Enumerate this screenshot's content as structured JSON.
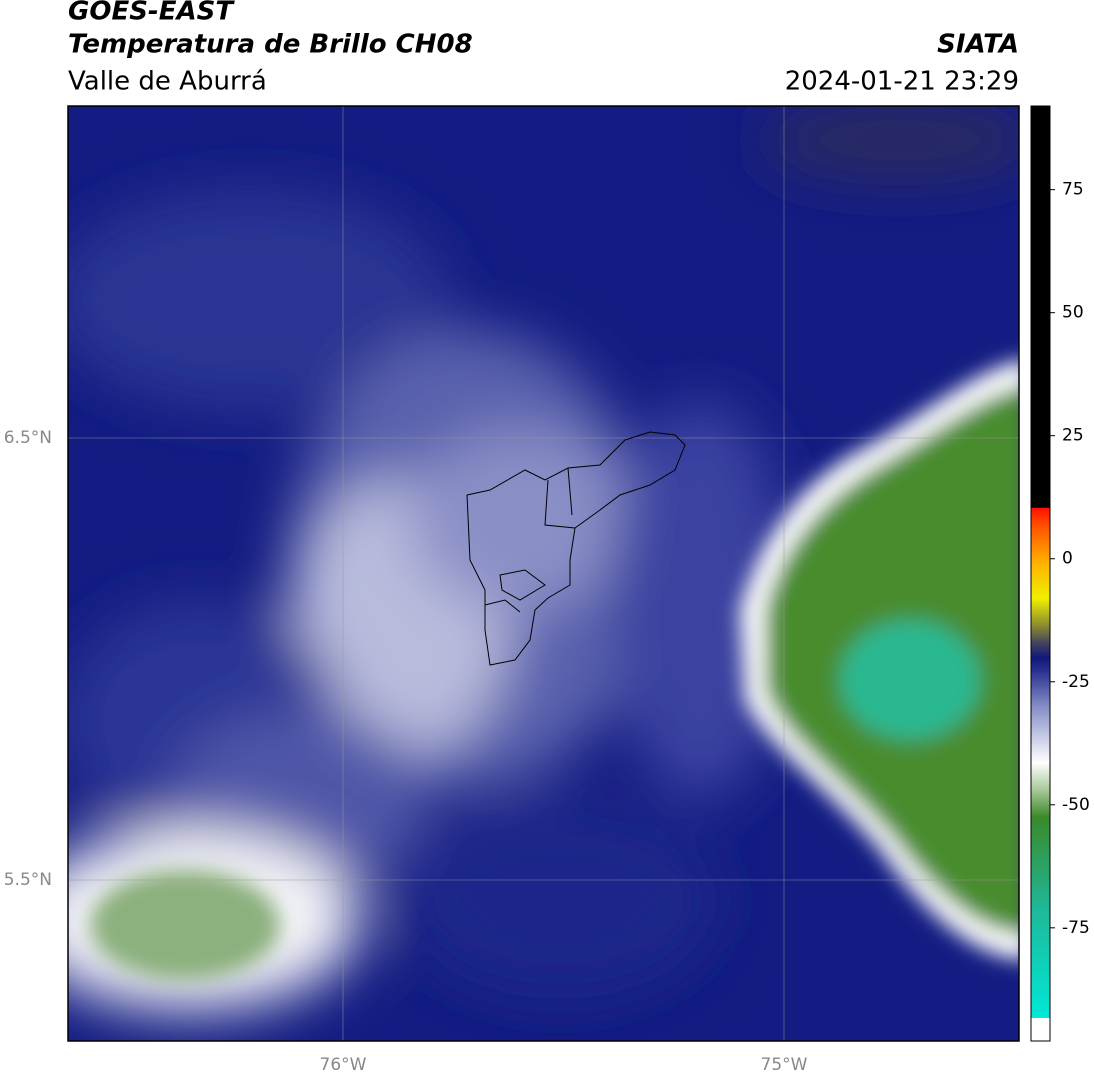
{
  "header": {
    "title": "GOES-EAST",
    "subtitle": "Temperatura de Brillo CH08",
    "region": "Valle de Aburrá",
    "agency": "SIATA",
    "datetime": "2024-01-21 23:29"
  },
  "map": {
    "lat_labels": [
      "6.5°N",
      "5.5°N"
    ],
    "lon_labels": [
      "76°W",
      "75°W"
    ]
  },
  "colorbar": {
    "lim": [
      -98,
      92
    ],
    "ticks": [
      75,
      50,
      25,
      0,
      -25,
      -50,
      -75
    ]
  }
}
